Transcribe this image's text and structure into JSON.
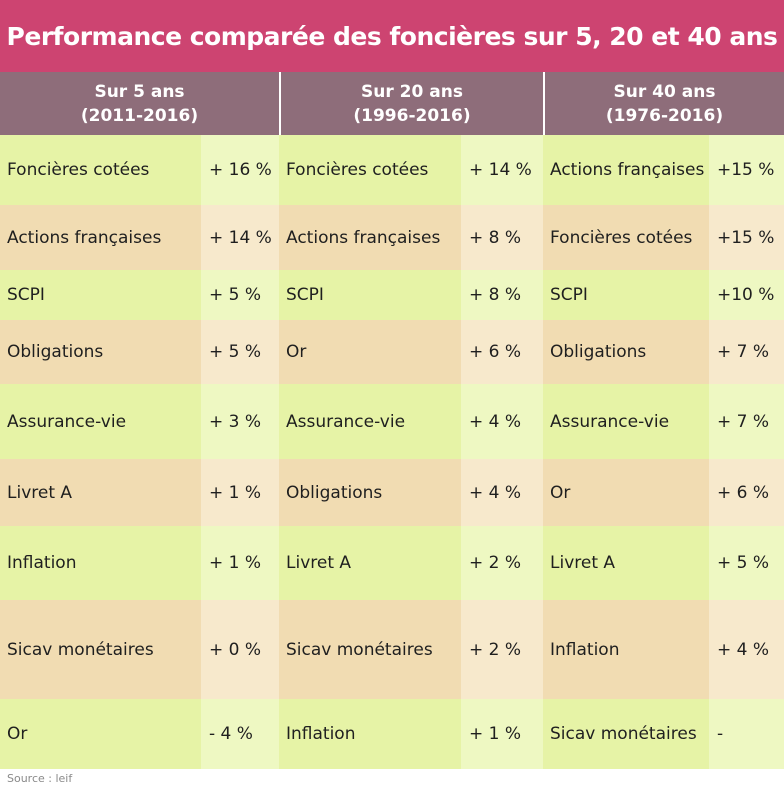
{
  "title": "Performance comparée des foncières sur 5, 20 et 40 ans",
  "periods": [
    {
      "name": "Sur 5 ans",
      "range": "(2011-2016)"
    },
    {
      "name": "Sur 20 ans",
      "range": "(1996-2016)"
    },
    {
      "name": "Sur 40 ans",
      "range": "(1976-2016)"
    }
  ],
  "rows": [
    [
      [
        "Foncières cotées",
        "+ 16 %"
      ],
      [
        "Foncières cotées",
        "+ 14 %"
      ],
      [
        "Actions françaises",
        "+15 %"
      ]
    ],
    [
      [
        "Actions françaises",
        "+ 14 %"
      ],
      [
        "Actions françaises",
        "+ 8 %"
      ],
      [
        "Foncières cotées",
        "+15 %"
      ]
    ],
    [
      [
        "SCPI",
        "+ 5 %"
      ],
      [
        "SCPI",
        "+ 8 %"
      ],
      [
        "SCPI",
        "+10 %"
      ]
    ],
    [
      [
        "Obligations",
        "+ 5 %"
      ],
      [
        "Or",
        "+ 6 %"
      ],
      [
        "Obligations",
        "+ 7 %"
      ]
    ],
    [
      [
        "Assurance-vie",
        "+ 3 %"
      ],
      [
        "Assurance-vie",
        "+ 4 %"
      ],
      [
        "Assurance-vie",
        "+ 7 %"
      ]
    ],
    [
      [
        "Livret A",
        "+ 1 %"
      ],
      [
        "Obligations",
        "+ 4 %"
      ],
      [
        "Or",
        "+ 6 %"
      ]
    ],
    [
      [
        "Inflation",
        "+ 1 %"
      ],
      [
        "Livret A",
        "+ 2 %"
      ],
      [
        "Livret A",
        "+ 5 %"
      ]
    ],
    [
      [
        "Sicav monétaires",
        "+ 0 %"
      ],
      [
        "Sicav monétaires",
        "+ 2 %"
      ],
      [
        "Inflation",
        "+ 4 %"
      ]
    ],
    [
      [
        "Or",
        "- 4 %"
      ],
      [
        "Inflation",
        "+ 1 %"
      ],
      [
        "Sicav monétaires",
        "-"
      ]
    ]
  ],
  "source": "Source : leif",
  "colors": {
    "title_bg": "#cd4471",
    "header_bg": "#8e6d7a",
    "row_green": "#e6f3a6",
    "row_beige": "#f1dcb2"
  }
}
